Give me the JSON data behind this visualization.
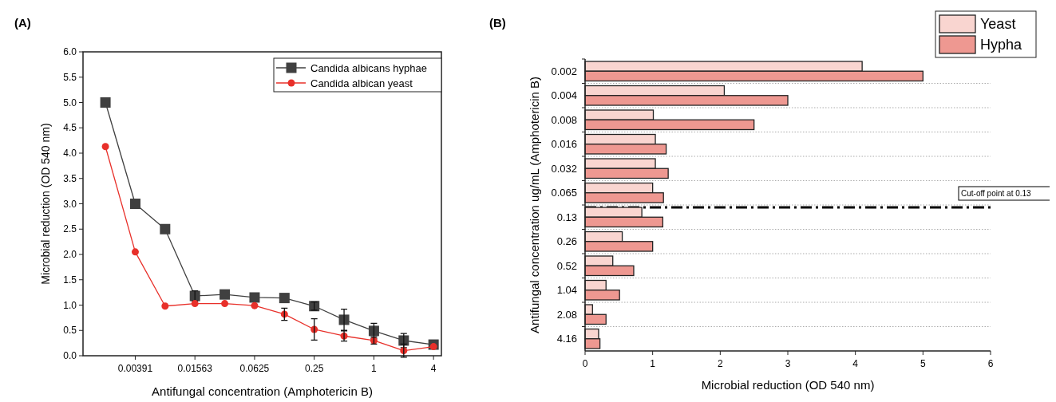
{
  "chart_data": [
    {
      "type": "line",
      "title": "(A)",
      "xlabel": "Antifungal concentration (Amphotericin B)",
      "ylabel": "Microbial reduction (OD 540 nm)",
      "log": "x",
      "xlim": [
        0.00116,
        4.8
      ],
      "xticks": [
        {
          "value": 0.00390625,
          "label": "0.00391"
        },
        {
          "value": 0.015625,
          "label": "0.01563"
        },
        0.0625,
        0.25,
        1,
        4
      ],
      "ylim": [
        0,
        6
      ],
      "yticks": [
        {
          "value": 0,
          "label": "0.0"
        },
        {
          "value": 0.5,
          "label": "0.5"
        },
        {
          "value": 1,
          "label": "1.0"
        },
        {
          "value": 1.5,
          "label": "1.5"
        },
        {
          "value": 2,
          "label": "2.0"
        },
        {
          "value": 2.5,
          "label": "2.5"
        },
        {
          "value": 3,
          "label": "3.0"
        },
        {
          "value": 3.5,
          "label": "3.5"
        },
        {
          "value": 4,
          "label": "4.0"
        },
        {
          "value": 4.5,
          "label": "4.5"
        },
        {
          "value": 5,
          "label": "5.0"
        },
        {
          "value": 5.5,
          "label": "5.5"
        },
        {
          "value": 6,
          "label": "6.0"
        }
      ],
      "x": [
        0.001953125,
        0.00390625,
        0.0078125,
        0.015625,
        0.03125,
        0.0625,
        0.125,
        0.25,
        0.5,
        1,
        2,
        4
      ],
      "legend": "top right",
      "grid": false,
      "series": [
        {
          "name": "Candida albicans hyphae",
          "color": "#404040",
          "marker": "square",
          "values": [
            5.0,
            3.0,
            2.5,
            1.18,
            1.21,
            1.15,
            1.14,
            0.98,
            0.71,
            0.49,
            0.3,
            0.22
          ],
          "errors": [
            null,
            null,
            null,
            0.1,
            null,
            null,
            null,
            0.08,
            0.21,
            0.15,
            0.14,
            null
          ]
        },
        {
          "name": "Candida albican yeast",
          "color": "#e8302a",
          "marker": "circle",
          "values": [
            4.13,
            2.05,
            0.98,
            1.03,
            1.03,
            0.99,
            0.82,
            0.52,
            0.39,
            0.3,
            0.1,
            0.18
          ],
          "errors": [
            null,
            null,
            null,
            null,
            null,
            null,
            0.12,
            0.21,
            0.1,
            0.07,
            0.13,
            null
          ]
        }
      ]
    },
    {
      "type": "bar",
      "orientation": "horizontal",
      "title": "(B)",
      "xlabel": "Microbial reduction (OD 540 nm)",
      "ylabel": "Antifungal concentration ug/mL (Amphotericin B)",
      "categories": [
        "0.002",
        "0.004",
        "0.008",
        "0.016",
        "0.032",
        "0.065",
        "0.13",
        "0.26",
        "0.52",
        "1.04",
        "2.08",
        "4.16"
      ],
      "xlim": [
        0,
        6
      ],
      "xticks": [
        0,
        1,
        2,
        3,
        4,
        5,
        6
      ],
      "grid": "y",
      "legend": "top right",
      "ref_lines": [
        {
          "axis": "y",
          "value": "0.13",
          "label": "Cut-off point at 0.13",
          "line_style": "dashed",
          "color": "#000000"
        }
      ],
      "series": [
        {
          "name": "Yeast",
          "color": "#f9d5d0",
          "values": [
            4.1,
            2.06,
            1.01,
            1.04,
            1.04,
            1.0,
            0.84,
            0.55,
            0.41,
            0.31,
            0.11,
            0.2
          ]
        },
        {
          "name": "Hypha",
          "color": "#ee9891",
          "values": [
            5.0,
            3.0,
            2.5,
            1.2,
            1.23,
            1.16,
            1.15,
            1.0,
            0.72,
            0.51,
            0.31,
            0.22
          ]
        }
      ]
    }
  ]
}
